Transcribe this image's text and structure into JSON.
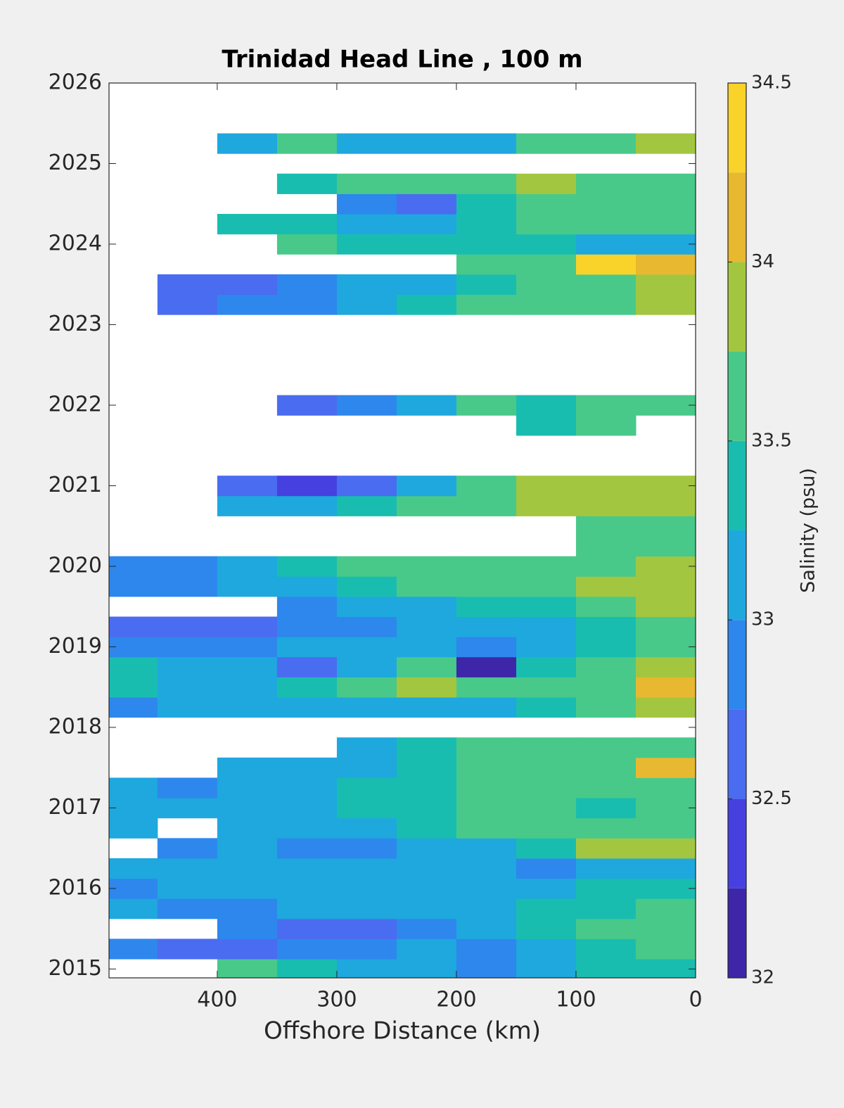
{
  "chart_data": {
    "type": "contour",
    "title": "Trinidad Head Line , 100 m",
    "xlabel": "Offshore Distance (km)",
    "xlim": [
      490.5,
      0
    ],
    "xticks": [
      400,
      300,
      200,
      100,
      0
    ],
    "ylim": [
      2014.89,
      2026
    ],
    "yticks": [
      2015,
      2016,
      2017,
      2018,
      2019,
      2020,
      2021,
      2022,
      2023,
      2024,
      2025,
      2026
    ],
    "x": [
      475,
      425,
      375,
      325,
      275,
      225,
      175,
      125,
      75,
      25
    ],
    "y": [
      2015,
      2015.25,
      2015.5,
      2015.75,
      2016,
      2016.25,
      2016.5,
      2016.75,
      2017,
      2017.25,
      2017.5,
      2017.75,
      2018,
      2018.25,
      2018.5,
      2018.75,
      2019,
      2019.25,
      2019.5,
      2019.75,
      2020,
      2020.25,
      2020.5,
      2020.75,
      2021,
      2021.25,
      2021.5,
      2021.75,
      2022,
      2022.25,
      2022.5,
      2022.75,
      2023,
      2023.25,
      2023.5,
      2023.75,
      2024,
      2024.25,
      2024.5,
      2024.75,
      2025,
      2025.25
    ],
    "z": [
      [
        null,
        null,
        33.5,
        33.4,
        33.2,
        33.0,
        32.9,
        33.1,
        33.3,
        33.4
      ],
      [
        32.8,
        32.7,
        32.6,
        32.9,
        32.9,
        33.0,
        32.9,
        33.1,
        33.3,
        33.6
      ],
      [
        null,
        null,
        32.8,
        32.7,
        32.7,
        32.9,
        33.1,
        33.4,
        33.5,
        33.7
      ],
      [
        33.0,
        32.9,
        32.9,
        33.1,
        33.2,
        33.0,
        33.1,
        33.3,
        33.4,
        33.6
      ],
      [
        32.8,
        33.0,
        33.1,
        33.0,
        33.1,
        33.2,
        33.0,
        33.1,
        33.3,
        33.4
      ],
      [
        33.1,
        33.0,
        33.2,
        33.1,
        33.0,
        33.1,
        33.1,
        32.9,
        33.0,
        33.2
      ],
      [
        null,
        32.9,
        33.0,
        32.9,
        32.8,
        33.0,
        33.2,
        33.4,
        33.8,
        33.8
      ],
      [
        33.0,
        null,
        33.0,
        33.1,
        33.1,
        33.3,
        33.6,
        33.5,
        33.6,
        33.7
      ],
      [
        33.1,
        33.1,
        33.0,
        33.2,
        33.3,
        33.4,
        33.5,
        33.5,
        33.4,
        33.5
      ],
      [
        33.0,
        32.9,
        33.0,
        33.2,
        33.3,
        33.4,
        33.5,
        33.6,
        33.5,
        33.6
      ],
      [
        null,
        null,
        33.1,
        33.1,
        33.2,
        33.4,
        33.5,
        33.6,
        33.7,
        34.1
      ],
      [
        null,
        null,
        null,
        null,
        33.1,
        33.3,
        33.6,
        33.5,
        33.6,
        33.7
      ],
      [
        null,
        null,
        null,
        null,
        null,
        null,
        null,
        null,
        null,
        null
      ],
      [
        32.9,
        33.0,
        33.2,
        33.1,
        33.1,
        33.2,
        33.2,
        33.4,
        33.6,
        33.8
      ],
      [
        33.3,
        33.1,
        33.2,
        33.4,
        33.5,
        33.8,
        33.6,
        33.5,
        33.7,
        34.0
      ],
      [
        33.4,
        33.2,
        33.1,
        32.7,
        33.0,
        33.6,
        32.2,
        33.3,
        33.6,
        33.9
      ],
      [
        32.9,
        32.8,
        32.9,
        33.1,
        33.0,
        33.1,
        32.9,
        33.1,
        33.4,
        33.6
      ],
      [
        32.7,
        32.6,
        32.5,
        32.8,
        32.9,
        33.0,
        33.1,
        33.2,
        33.3,
        33.6
      ],
      [
        null,
        null,
        null,
        32.9,
        33.0,
        33.2,
        33.3,
        33.4,
        33.5,
        33.8
      ],
      [
        32.8,
        32.9,
        33.0,
        33.2,
        33.4,
        33.6,
        33.5,
        33.7,
        33.8,
        33.8
      ],
      [
        32.8,
        32.9,
        33.1,
        33.3,
        33.5,
        33.6,
        33.5,
        33.6,
        33.7,
        33.8
      ],
      [
        null,
        null,
        null,
        null,
        null,
        null,
        null,
        null,
        33.5,
        33.6
      ],
      [
        null,
        null,
        null,
        null,
        null,
        null,
        null,
        null,
        33.5,
        33.6
      ],
      [
        null,
        null,
        33.2,
        33.1,
        33.3,
        33.6,
        33.7,
        33.8,
        33.8,
        33.8
      ],
      [
        null,
        null,
        32.6,
        32.4,
        32.7,
        33.0,
        33.6,
        33.8,
        33.8,
        33.9
      ],
      [
        null,
        null,
        null,
        null,
        null,
        null,
        null,
        null,
        null,
        null
      ],
      [
        null,
        null,
        null,
        null,
        null,
        null,
        null,
        null,
        null,
        null
      ],
      [
        null,
        null,
        null,
        null,
        null,
        null,
        null,
        33.4,
        33.7,
        null
      ],
      [
        null,
        null,
        null,
        32.7,
        32.8,
        33.1,
        33.5,
        33.4,
        33.5,
        33.5
      ],
      [
        null,
        null,
        null,
        null,
        null,
        null,
        null,
        null,
        null,
        null
      ],
      [
        null,
        null,
        null,
        null,
        null,
        null,
        null,
        null,
        null,
        null
      ],
      [
        null,
        null,
        null,
        null,
        null,
        null,
        null,
        null,
        null,
        null
      ],
      [
        null,
        null,
        null,
        null,
        null,
        null,
        null,
        null,
        null,
        null
      ],
      [
        null,
        32.6,
        32.8,
        32.9,
        33.1,
        33.3,
        33.6,
        33.5,
        33.6,
        33.9
      ],
      [
        null,
        32.6,
        32.7,
        32.9,
        33.0,
        33.1,
        33.4,
        33.7,
        33.7,
        33.8
      ],
      [
        null,
        null,
        null,
        null,
        null,
        null,
        33.5,
        33.6,
        34.3,
        34.1
      ],
      [
        null,
        null,
        null,
        33.6,
        33.4,
        33.3,
        33.3,
        33.4,
        33.1,
        33.2
      ],
      [
        null,
        null,
        33.4,
        33.3,
        33.1,
        33.2,
        33.3,
        33.5,
        33.6,
        33.6
      ],
      [
        null,
        null,
        null,
        null,
        32.8,
        32.7,
        33.4,
        33.5,
        33.6,
        33.7
      ],
      [
        null,
        null,
        null,
        33.4,
        33.5,
        33.6,
        33.7,
        33.8,
        33.6,
        33.7
      ],
      [
        null,
        null,
        null,
        null,
        null,
        null,
        null,
        null,
        null,
        null
      ],
      [
        null,
        null,
        33.2,
        33.5,
        33.2,
        33.1,
        33.1,
        33.6,
        33.5,
        33.8
      ]
    ],
    "colorbar": {
      "label": "Salinity (psu)",
      "levels": [
        32,
        32.25,
        32.5,
        32.75,
        33,
        33.25,
        33.5,
        33.75,
        34,
        34.25,
        34.5
      ],
      "colors": [
        "#3e26a8",
        "#4640e0",
        "#4a6cf0",
        "#2e87ec",
        "#1ea8de",
        "#19bdb0",
        "#48c98a",
        "#a3c640",
        "#e8b830",
        "#f9d22a"
      ],
      "ticks": [
        32,
        32.5,
        33,
        33.5,
        34,
        34.5
      ]
    }
  }
}
